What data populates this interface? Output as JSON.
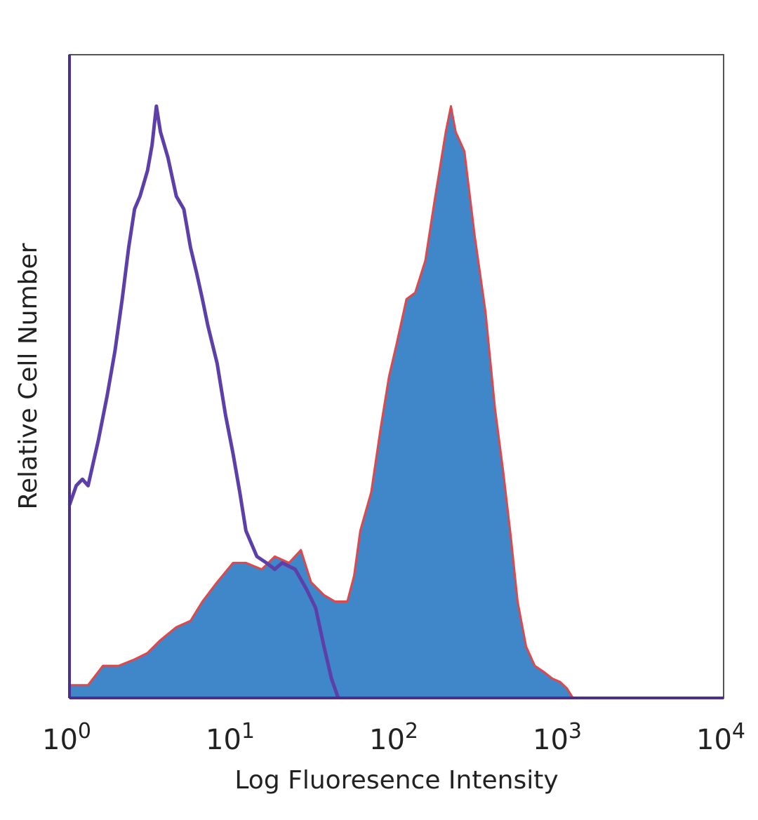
{
  "chart_data": {
    "type": "area",
    "title": "",
    "xlabel": "Log Fluoresence Intensity",
    "ylabel": "Relative Cell Number",
    "x_scale": "log",
    "xlim": [
      1,
      10000
    ],
    "ylim": [
      0,
      100
    ],
    "x_ticks": [
      {
        "value": 1,
        "base": "10",
        "exp": "0"
      },
      {
        "value": 10,
        "base": "10",
        "exp": "1"
      },
      {
        "value": 100,
        "base": "10",
        "exp": "2"
      },
      {
        "value": 1000,
        "base": "10",
        "exp": "3"
      },
      {
        "value": 10000,
        "base": "10",
        "exp": "4"
      }
    ],
    "grid": false,
    "legend": "none",
    "series": [
      {
        "style": "filled",
        "fill_color": "#3f87c9",
        "edge_color": "#e0474a",
        "points": [
          [
            1.0,
            2
          ],
          [
            1.3,
            2
          ],
          [
            1.6,
            5
          ],
          [
            2.0,
            5
          ],
          [
            2.5,
            6
          ],
          [
            3.0,
            7
          ],
          [
            3.6,
            9
          ],
          [
            4.5,
            11
          ],
          [
            5.5,
            12
          ],
          [
            6.5,
            15
          ],
          [
            8.0,
            18
          ],
          [
            10,
            21
          ],
          [
            12,
            21
          ],
          [
            15,
            20
          ],
          [
            18,
            22
          ],
          [
            22,
            21
          ],
          [
            26,
            23
          ],
          [
            30,
            18
          ],
          [
            36,
            16
          ],
          [
            42,
            15
          ],
          [
            50,
            15
          ],
          [
            55,
            19
          ],
          [
            60,
            26
          ],
          [
            70,
            32
          ],
          [
            80,
            42
          ],
          [
            90,
            50
          ],
          [
            100,
            55
          ],
          [
            115,
            62
          ],
          [
            130,
            63
          ],
          [
            150,
            68
          ],
          [
            170,
            77
          ],
          [
            200,
            88
          ],
          [
            215,
            92
          ],
          [
            230,
            88
          ],
          [
            260,
            85
          ],
          [
            300,
            72
          ],
          [
            350,
            60
          ],
          [
            400,
            45
          ],
          [
            450,
            35
          ],
          [
            500,
            25
          ],
          [
            550,
            15
          ],
          [
            620,
            8
          ],
          [
            700,
            5
          ],
          [
            800,
            4
          ],
          [
            900,
            3
          ],
          [
            1000,
            2.5
          ],
          [
            1100,
            1.5
          ],
          [
            1200,
            0
          ]
        ]
      },
      {
        "style": "outline",
        "line_color": "#5c3fa8",
        "points": [
          [
            1.0,
            30
          ],
          [
            1.1,
            33
          ],
          [
            1.2,
            34
          ],
          [
            1.3,
            33
          ],
          [
            1.5,
            40
          ],
          [
            1.7,
            47
          ],
          [
            1.9,
            54
          ],
          [
            2.1,
            62
          ],
          [
            2.3,
            70
          ],
          [
            2.5,
            76
          ],
          [
            2.7,
            78
          ],
          [
            3.0,
            82
          ],
          [
            3.2,
            86
          ],
          [
            3.4,
            92
          ],
          [
            3.6,
            88
          ],
          [
            4.0,
            84
          ],
          [
            4.5,
            78
          ],
          [
            5.0,
            76
          ],
          [
            5.5,
            70
          ],
          [
            6.0,
            66
          ],
          [
            6.5,
            62
          ],
          [
            7.0,
            58
          ],
          [
            8.0,
            52
          ],
          [
            9.0,
            44
          ],
          [
            10,
            38
          ],
          [
            11,
            32
          ],
          [
            12,
            26
          ],
          [
            14,
            22
          ],
          [
            16,
            21
          ],
          [
            18,
            20
          ],
          [
            20,
            21
          ],
          [
            24,
            20
          ],
          [
            28,
            17
          ],
          [
            32,
            14
          ],
          [
            36,
            8
          ],
          [
            40,
            3
          ],
          [
            44,
            0
          ]
        ]
      }
    ]
  }
}
